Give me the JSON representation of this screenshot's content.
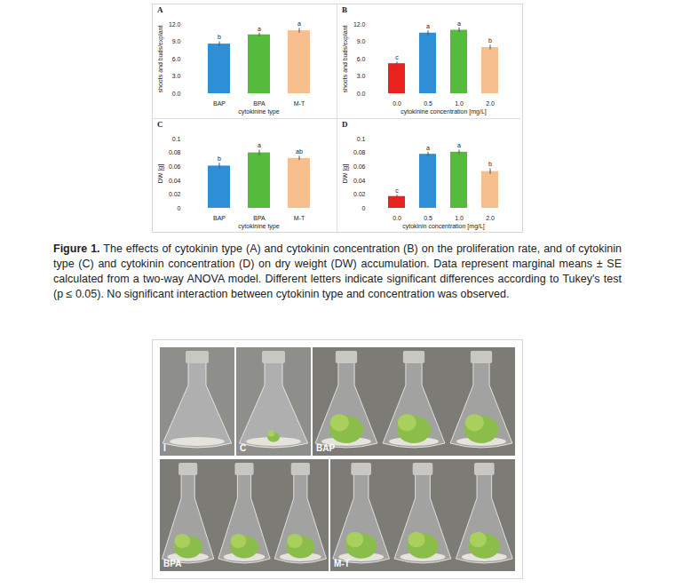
{
  "chart_data": [
    {
      "type": "bar",
      "panel": "A",
      "xlabel": "cytokinine type",
      "ylabel": "shoots and buds/explant",
      "categories": [
        "BAP",
        "BPA",
        "M-T"
      ],
      "values": [
        8.6,
        10.2,
        10.9
      ],
      "errors": [
        0.4,
        0.3,
        0.4
      ],
      "letters": [
        "b",
        "a",
        "a"
      ],
      "colors": [
        "#2f8fd6",
        "#55bb3c",
        "#f8bf8e"
      ],
      "ylim": [
        0,
        12
      ],
      "yticks": [
        {
          "value": 0,
          "label": "0.0"
        },
        {
          "value": 3,
          "label": "3.0"
        },
        {
          "value": 6,
          "label": "6.0"
        },
        {
          "value": 9,
          "label": "9.0"
        },
        {
          "value": 12,
          "label": "12.0"
        }
      ]
    },
    {
      "type": "bar",
      "panel": "B",
      "xlabel": "cytokinine concentration [mg/L]",
      "ylabel": "shoots and buds/explant",
      "categories": [
        "0.0",
        "0.5",
        "1.0",
        "2.0"
      ],
      "values": [
        5.2,
        10.5,
        11.0,
        8.0
      ],
      "errors": [
        0.3,
        0.4,
        0.4,
        0.4
      ],
      "letters": [
        "c",
        "a",
        "a",
        "b"
      ],
      "colors": [
        "#e8231f",
        "#2f8fd6",
        "#55bb3c",
        "#f8bf8e"
      ],
      "ylim": [
        0,
        12
      ],
      "yticks": [
        {
          "value": 0,
          "label": "0.0"
        },
        {
          "value": 3,
          "label": "3.0"
        },
        {
          "value": 6,
          "label": "6.0"
        },
        {
          "value": 9,
          "label": "9.0"
        },
        {
          "value": 12,
          "label": "12.0"
        }
      ]
    },
    {
      "type": "bar",
      "panel": "C",
      "xlabel": "cytokinine type",
      "ylabel": "DW [g]",
      "categories": [
        "BAP",
        "BPA",
        "M-T"
      ],
      "values": [
        0.061,
        0.08,
        0.072
      ],
      "errors": [
        0.004,
        0.004,
        0.003
      ],
      "letters": [
        "b",
        "a",
        "ab"
      ],
      "colors": [
        "#2f8fd6",
        "#55bb3c",
        "#f8bf8e"
      ],
      "ylim": [
        0,
        0.1
      ],
      "yticks": [
        0,
        0.02,
        0.04,
        0.06,
        0.08,
        0.1
      ]
    },
    {
      "type": "bar",
      "panel": "D",
      "xlabel": "cytokinin concentration [mg/L]",
      "ylabel": "DW [g]",
      "categories": [
        "0.0",
        "0.5",
        "1.0",
        "2.0"
      ],
      "values": [
        0.017,
        0.078,
        0.081,
        0.053
      ],
      "errors": [
        0.002,
        0.003,
        0.003,
        0.004
      ],
      "letters": [
        "c",
        "a",
        "a",
        "b"
      ],
      "colors": [
        "#e8231f",
        "#2f8fd6",
        "#55bb3c",
        "#f8bf8e"
      ],
      "ylim": [
        0,
        0.1
      ],
      "yticks": [
        0,
        0.02,
        0.04,
        0.06,
        0.08,
        0.1
      ]
    }
  ],
  "caption": {
    "label": "Figure 1.",
    "text": "The effects of cytokinin type (A) and cytokinin concentration (B) on the proliferation rate, and of cytokinin type (C) and cytokinin concentration (D) on dry weight (DW) accumulation. Data represent marginal means ± SE calculated from a two-way ANOVA model. Different letters indicate significant differences according to Tukey's test (p ≤ 0.05). No significant interaction between cytokinin type and concentration was observed."
  },
  "photo": {
    "panels": [
      "I",
      "C",
      "BAP",
      "BPA",
      "M-T"
    ]
  }
}
